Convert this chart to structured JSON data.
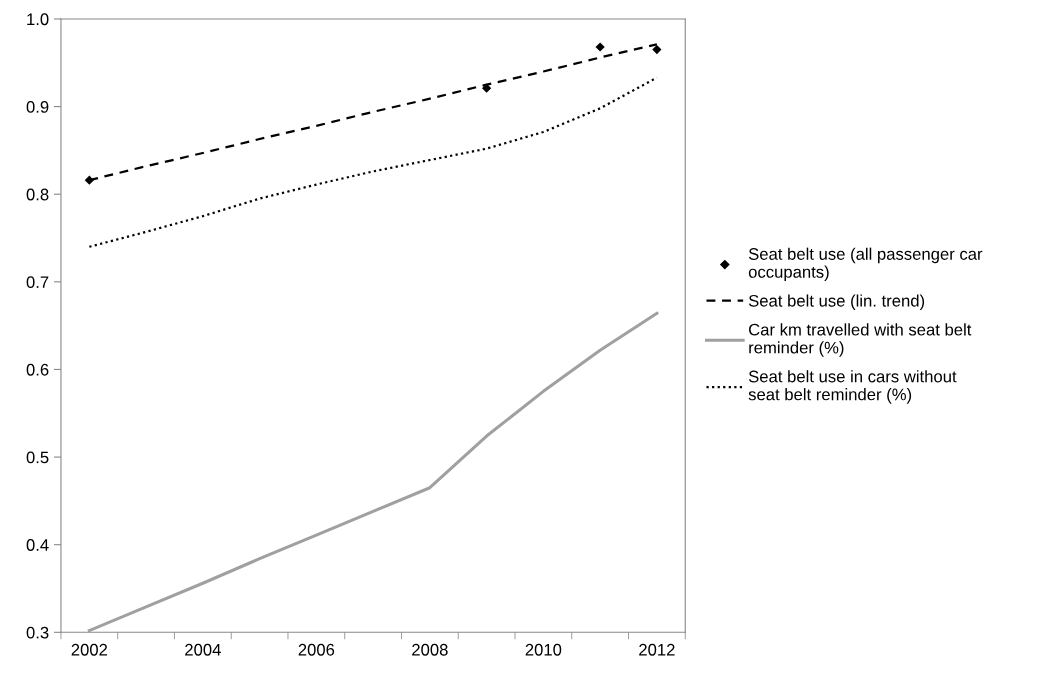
{
  "chart_data": {
    "type": "line",
    "categories": [
      "2002",
      null,
      "2004",
      null,
      "2006",
      null,
      "2008",
      null,
      "2010",
      null,
      "2012"
    ],
    "ylim": [
      0.3,
      1.0
    ],
    "yticks": [
      0.3,
      0.4,
      0.5,
      0.6,
      0.7,
      0.8,
      0.9,
      {
        "value": 1.0,
        "label": "1.0"
      }
    ],
    "grid": false,
    "legend": "right",
    "series": [
      {
        "name": "Seat belt use (all passenger car occupants)",
        "type": "scatter",
        "marker": "diamond",
        "color": "#000000",
        "values": [
          0.816,
          null,
          null,
          null,
          null,
          null,
          null,
          0.921,
          null,
          0.968,
          0.965
        ]
      },
      {
        "name": "Seat belt use (lin. trend)",
        "line_style": "dashed",
        "color": "#000000",
        "values": [
          0.816,
          0.832,
          0.847,
          0.863,
          0.878,
          0.894,
          0.909,
          0.925,
          0.94,
          0.956,
          0.971
        ]
      },
      {
        "name": "Car km travelled with seat belt reminder (%)",
        "line_style": "solid",
        "color": "#a0a0a0",
        "values": [
          0.302,
          0.329,
          0.356,
          0.384,
          0.411,
          0.438,
          0.465,
          0.524,
          0.575,
          0.622,
          0.664
        ]
      },
      {
        "name": "Seat belt use in cars without seat belt reminder (%)",
        "line_style": "dotted",
        "color": "#000000",
        "values": [
          0.74,
          0.757,
          0.775,
          0.795,
          0.811,
          0.826,
          0.839,
          0.852,
          0.871,
          0.898,
          0.933
        ]
      }
    ]
  }
}
